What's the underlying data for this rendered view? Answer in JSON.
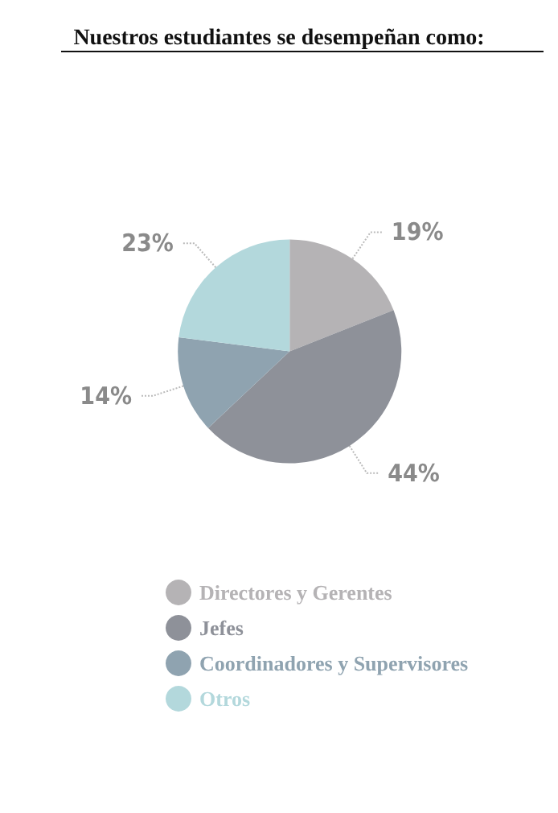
{
  "chart_data": {
    "type": "pie",
    "title": "Nuestros estudiantes se desempeñan como:",
    "categories": [
      "Directores y Gerentes",
      "Jefes",
      "Coordinadores y Supervisores",
      "Otros"
    ],
    "values": [
      19,
      44,
      14,
      23
    ],
    "colors": [
      "#b5b3b5",
      "#8e9199",
      "#8fa3b0",
      "#b3d8dc"
    ],
    "value_labels": [
      "19%",
      "44%",
      "14%",
      "23%"
    ],
    "legend": "bottom"
  }
}
